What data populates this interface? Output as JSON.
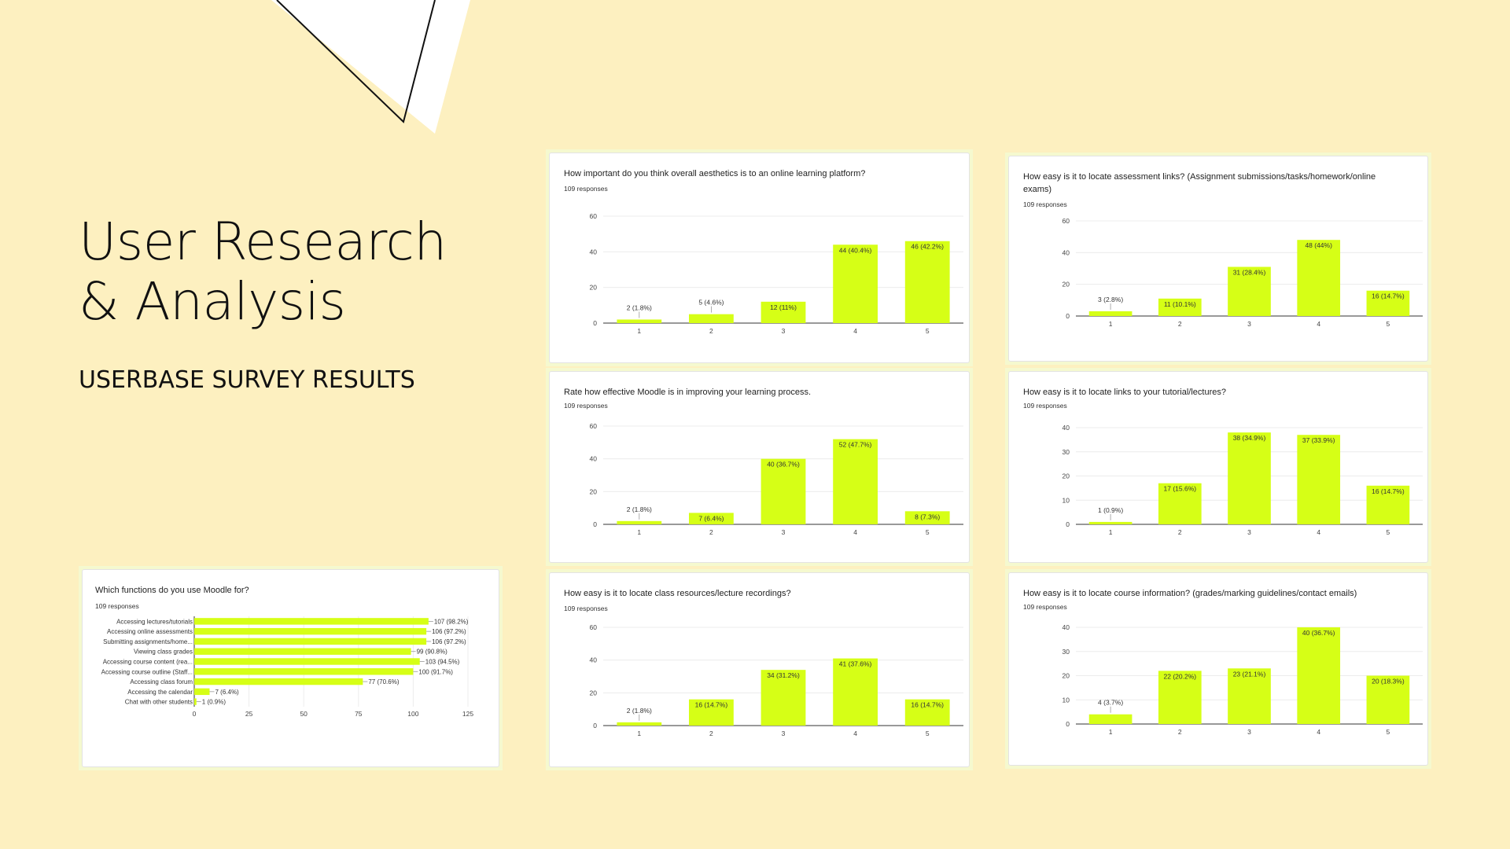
{
  "slide": {
    "title_line1": "User Research",
    "title_line2": "& Analysis",
    "subtitle": "USERBASE SURVEY RESULTS"
  },
  "colors": {
    "background": "#fdf0c0",
    "bar": "#d6ff16",
    "frame": "#f5f9cf"
  },
  "chart_data": [
    {
      "id": "aesthetics",
      "type": "bar",
      "title": "How important do you think overall aesthetics is to an online learning platform?",
      "responses": "109 responses",
      "categories": [
        "1",
        "2",
        "3",
        "4",
        "5"
      ],
      "values": [
        2,
        5,
        12,
        44,
        46
      ],
      "labels": [
        "2 (1.8%)",
        "5 (4.6%)",
        "12 (11%)",
        "44 (40.4%)",
        "46 (42.2%)"
      ],
      "ylim": [
        0,
        60
      ],
      "yticks": [
        0,
        20,
        40,
        60
      ],
      "grid": true
    },
    {
      "id": "effective",
      "type": "bar",
      "title": "Rate how effective Moodle is in improving your learning process.",
      "responses": "109 responses",
      "categories": [
        "1",
        "2",
        "3",
        "4",
        "5"
      ],
      "values": [
        2,
        7,
        40,
        52,
        8
      ],
      "labels": [
        "2 (1.8%)",
        "7 (6.4%)",
        "40 (36.7%)",
        "52 (47.7%)",
        "8 (7.3%)"
      ],
      "ylim": [
        0,
        60
      ],
      "yticks": [
        0,
        20,
        40,
        60
      ],
      "grid": true
    },
    {
      "id": "resources",
      "type": "bar",
      "title": "How easy is it to locate class resources/lecture recordings?",
      "responses": "109 responses",
      "categories": [
        "1",
        "2",
        "3",
        "4",
        "5"
      ],
      "values": [
        2,
        16,
        34,
        41,
        16
      ],
      "labels": [
        "2 (1.8%)",
        "16 (14.7%)",
        "34 (31.2%)",
        "41 (37.6%)",
        "16 (14.7%)"
      ],
      "ylim": [
        0,
        60
      ],
      "yticks": [
        0,
        20,
        40,
        60
      ],
      "grid": true
    },
    {
      "id": "assessment",
      "type": "bar",
      "title": "How easy is it to locate assessment links? (Assignment submissions/tasks/homework/online exams)",
      "title_line1": "How easy is it to locate assessment links? (Assignment submissions/tasks/homework/online",
      "title_line2": "exams)",
      "responses": "109 responses",
      "categories": [
        "1",
        "2",
        "3",
        "4",
        "5"
      ],
      "values": [
        3,
        11,
        31,
        48,
        16
      ],
      "labels": [
        "3 (2.8%)",
        "11 (10.1%)",
        "31 (28.4%)",
        "48 (44%)",
        "16 (14.7%)"
      ],
      "ylim": [
        0,
        60
      ],
      "yticks": [
        0,
        20,
        40,
        60
      ],
      "grid": true
    },
    {
      "id": "tutorial",
      "type": "bar",
      "title": "How easy is it to locate links to your tutorial/lectures?",
      "responses": "109 responses",
      "categories": [
        "1",
        "2",
        "3",
        "4",
        "5"
      ],
      "values": [
        1,
        17,
        38,
        37,
        16
      ],
      "labels": [
        "1 (0.9%)",
        "17 (15.6%)",
        "38 (34.9%)",
        "37 (33.9%)",
        "16 (14.7%)"
      ],
      "ylim": [
        0,
        40
      ],
      "yticks": [
        0,
        10,
        20,
        30,
        40
      ],
      "grid": true
    },
    {
      "id": "courseinfo",
      "type": "bar",
      "title": "How easy is it to locate course information? (grades/marking guidelines/contact emails)",
      "responses": "109 responses",
      "categories": [
        "1",
        "2",
        "3",
        "4",
        "5"
      ],
      "values": [
        4,
        22,
        23,
        40,
        20
      ],
      "labels": [
        "4 (3.7%)",
        "22 (20.2%)",
        "23 (21.1%)",
        "40 (36.7%)",
        "20 (18.3%)"
      ],
      "ylim": [
        0,
        40
      ],
      "yticks": [
        0,
        10,
        20,
        30,
        40
      ],
      "grid": true
    },
    {
      "id": "functions",
      "type": "bar",
      "orientation": "horizontal",
      "title": "Which functions do you use Moodle for?",
      "responses": "109 responses",
      "categories": [
        "Accessing lectures/tutorials",
        "Accessing online assessments",
        "Submitting assignments/home...",
        "Viewing class grades",
        "Accessing course content (rea...",
        "Accessing course outline (Staff...",
        "Accessing class forum",
        "Accessing the calendar",
        "Chat with other students"
      ],
      "values": [
        107,
        106,
        106,
        99,
        103,
        100,
        77,
        7,
        1
      ],
      "labels": [
        "107 (98.2%)",
        "106 (97.2%)",
        "106 (97.2%)",
        "99 (90.8%)",
        "103 (94.5%)",
        "100 (91.7%)",
        "77 (70.6%)",
        "7 (6.4%)",
        "1 (0.9%)"
      ],
      "xlim": [
        0,
        125
      ],
      "xticks": [
        0,
        25,
        50,
        75,
        100,
        125
      ],
      "grid": true
    }
  ]
}
